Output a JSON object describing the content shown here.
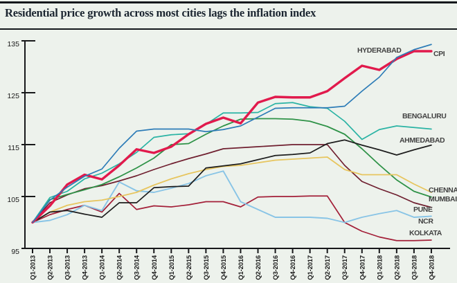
{
  "page": {
    "title": "Residential price growth across most cities lags the inflation index"
  },
  "chart_data": {
    "type": "line",
    "title": "Residential price growth across most cities lags the inflation index",
    "xlabel": "",
    "ylabel": "",
    "ylim": [
      95,
      135
    ],
    "y_ticks": [
      135,
      125,
      115,
      105,
      95
    ],
    "grid": "off",
    "legend_position": "labels-at-line-ends",
    "categories": [
      "Q1-2013",
      "Q2-2013",
      "Q3-2013",
      "Q4-2013",
      "Q1-2014",
      "Q2-2014",
      "Q3-2014",
      "Q4-2014",
      "Q1-2015",
      "Q2-2015",
      "Q3-2015",
      "Q4-2015",
      "Q1-2016",
      "Q2-2016",
      "Q3-2016",
      "Q4-2016",
      "Q1-2017",
      "Q2-2017",
      "Q3-2017",
      "Q4-2017",
      "Q1-2018",
      "Q2-2018",
      "Q3-2018",
      "Q4-2018"
    ],
    "series": [
      {
        "name": "HYDERABAD",
        "color": "#2d7cb7",
        "width": 1.7,
        "values": [
          100,
          104.3,
          106.8,
          108.9,
          110.3,
          114.3,
          117.6,
          118,
          118,
          118,
          117.5,
          117.9,
          118.6,
          120.3,
          122,
          122.1,
          122.1,
          122.1,
          122.4,
          125.3,
          128,
          131.8,
          133.3,
          134.3
        ]
      },
      {
        "name": "CPI",
        "color": "#e11a4c",
        "width": 3.4,
        "values": [
          100,
          103.2,
          107.3,
          109.2,
          108.3,
          111,
          114.1,
          113.4,
          114.6,
          117,
          119,
          120.2,
          119.1,
          123.1,
          124.2,
          124.1,
          124.1,
          125.3,
          127.8,
          130.2,
          129.4,
          131.5,
          133,
          133
        ]
      },
      {
        "name": "BENGALURU",
        "color": "#2ab3a4",
        "width": 1.7,
        "values": [
          100,
          104.8,
          106,
          108.4,
          109.5,
          111.3,
          113.5,
          116.4,
          116.9,
          117.1,
          118.9,
          121.1,
          121.1,
          121.2,
          122.9,
          123.1,
          122.3,
          122,
          119.5,
          116,
          117.9,
          118.6,
          118.3,
          118
        ]
      },
      {
        "name": "AHMEDABAD",
        "color": "#1d1d1d",
        "width": 1.7,
        "values": [
          100,
          102,
          102.3,
          101.6,
          101,
          103.8,
          103.8,
          106.7,
          106.9,
          107,
          110.5,
          110.9,
          111.3,
          112.1,
          112.9,
          113.1,
          113.4,
          115.2,
          115.9,
          114.9,
          114,
          113,
          114,
          114.9
        ]
      },
      {
        "name": "CHENNAI",
        "color": "#e7c55e",
        "width": 1.8,
        "values": [
          100,
          102,
          103.3,
          104,
          104.3,
          105,
          105.8,
          107.2,
          108.4,
          109.4,
          110.2,
          110.8,
          111,
          111.5,
          112,
          112.2,
          112.4,
          112.6,
          110.2,
          109.2,
          109.2,
          109.2,
          107.4,
          105.8
        ]
      },
      {
        "name": "MUMBAI",
        "color": "#2e9247",
        "width": 1.8,
        "values": [
          100,
          104.4,
          105.4,
          106.3,
          107.3,
          108.8,
          110.5,
          112.4,
          115,
          115.2,
          117,
          118.6,
          119.9,
          120,
          120,
          119.9,
          119.5,
          118.5,
          117,
          114.2,
          111.1,
          108.2,
          106,
          104.9
        ]
      },
      {
        "name": "PUNE",
        "color": "#6f1f2f",
        "width": 1.7,
        "values": [
          100,
          103.8,
          105.3,
          106.5,
          107.1,
          108,
          109,
          110.2,
          111.3,
          112.3,
          113.2,
          114.2,
          114.4,
          114.6,
          114.8,
          115,
          115,
          115,
          111,
          107.9,
          106.5,
          105.3,
          103.8,
          102.9
        ]
      },
      {
        "name": "NCR",
        "color": "#88c4e6",
        "width": 1.9,
        "values": [
          100,
          100.4,
          101.5,
          103.3,
          102.3,
          107.8,
          106.1,
          105.8,
          106.6,
          107.5,
          109,
          109.9,
          104,
          102.5,
          101,
          101,
          101,
          100.8,
          100,
          101,
          101.7,
          102.3,
          101,
          101.2
        ]
      },
      {
        "name": "KOLKATA",
        "color": "#a31f38",
        "width": 1.7,
        "values": [
          100,
          101.5,
          102.5,
          103.3,
          102,
          105.6,
          102.5,
          103.2,
          103,
          103.4,
          104,
          104,
          103,
          104.9,
          105,
          105,
          105.1,
          105.1,
          100,
          98.3,
          97.2,
          96.5,
          96.5,
          96.6
        ]
      }
    ]
  }
}
